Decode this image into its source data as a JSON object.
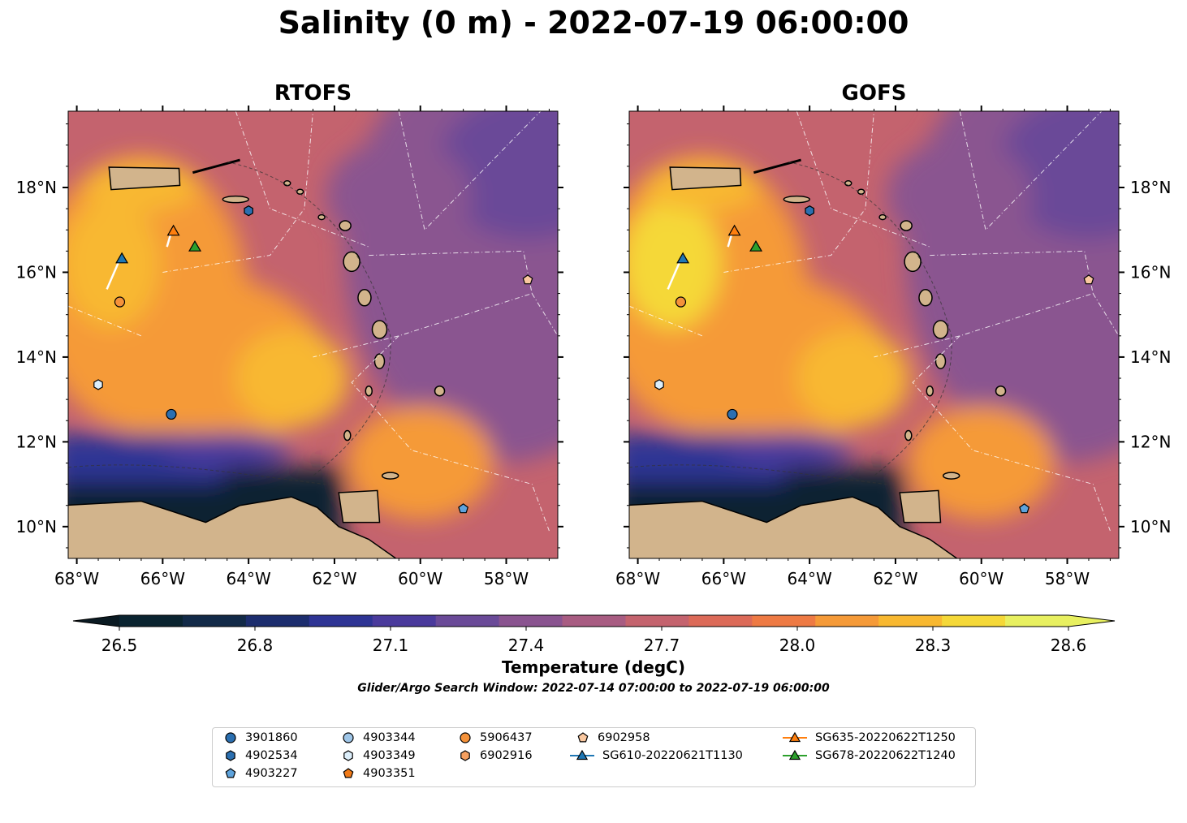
{
  "title": "Salinity (0 m) - 2022-07-19 06:00:00",
  "panels": [
    {
      "name": "RTOFS"
    },
    {
      "name": "GOFS"
    }
  ],
  "axes": {
    "lon_ticks": [
      "68°W",
      "66°W",
      "64°W",
      "62°W",
      "60°W",
      "58°W"
    ],
    "lat_ticks": [
      "18°N",
      "16°N",
      "14°N",
      "12°N",
      "10°N"
    ]
  },
  "colorbar": {
    "label": "Temperature (degC)",
    "ticks": [
      "26.5",
      "26.8",
      "27.1",
      "27.4",
      "27.7",
      "28.0",
      "28.3",
      "28.6"
    ],
    "colors": [
      "#0a2430",
      "#122a48",
      "#1c2d6e",
      "#2e3494",
      "#4a3a9c",
      "#6a4a98",
      "#8a5490",
      "#a85c82",
      "#c4636e",
      "#dc6a58",
      "#ee7a44",
      "#f59a38",
      "#f8b830",
      "#f5d838",
      "#e8f060"
    ]
  },
  "search_window": "Glider/Argo Search Window: 2022-07-14 07:00:00 to 2022-07-19 06:00:00",
  "legend": [
    {
      "label": "3901860",
      "marker": "circle",
      "color": "#2b6fb0"
    },
    {
      "label": "4902534",
      "marker": "hexagon",
      "color": "#2b6fb0"
    },
    {
      "label": "4903227",
      "marker": "pentagon",
      "color": "#5ea3dc"
    },
    {
      "label": "4903344",
      "marker": "circle",
      "color": "#9fc6e8"
    },
    {
      "label": "4903349",
      "marker": "hexagon",
      "color": "#dceefa"
    },
    {
      "label": "4903351",
      "marker": "pentagon",
      "color": "#f07a18"
    },
    {
      "label": "5906437",
      "marker": "circle",
      "color": "#f5923a"
    },
    {
      "label": "6902916",
      "marker": "hexagon",
      "color": "#f5a060"
    },
    {
      "label": "6902958",
      "marker": "pentagon",
      "color": "#fac8a0"
    },
    {
      "label": "SG610-20220621T1130",
      "marker": "triangle-line",
      "color": "#1f77b4"
    },
    {
      "label": "SG635-20220622T1250",
      "marker": "triangle-line",
      "color": "#ff7f0e"
    },
    {
      "label": "SG678-20220622T1240",
      "marker": "triangle-line",
      "color": "#2ca02c"
    }
  ]
}
